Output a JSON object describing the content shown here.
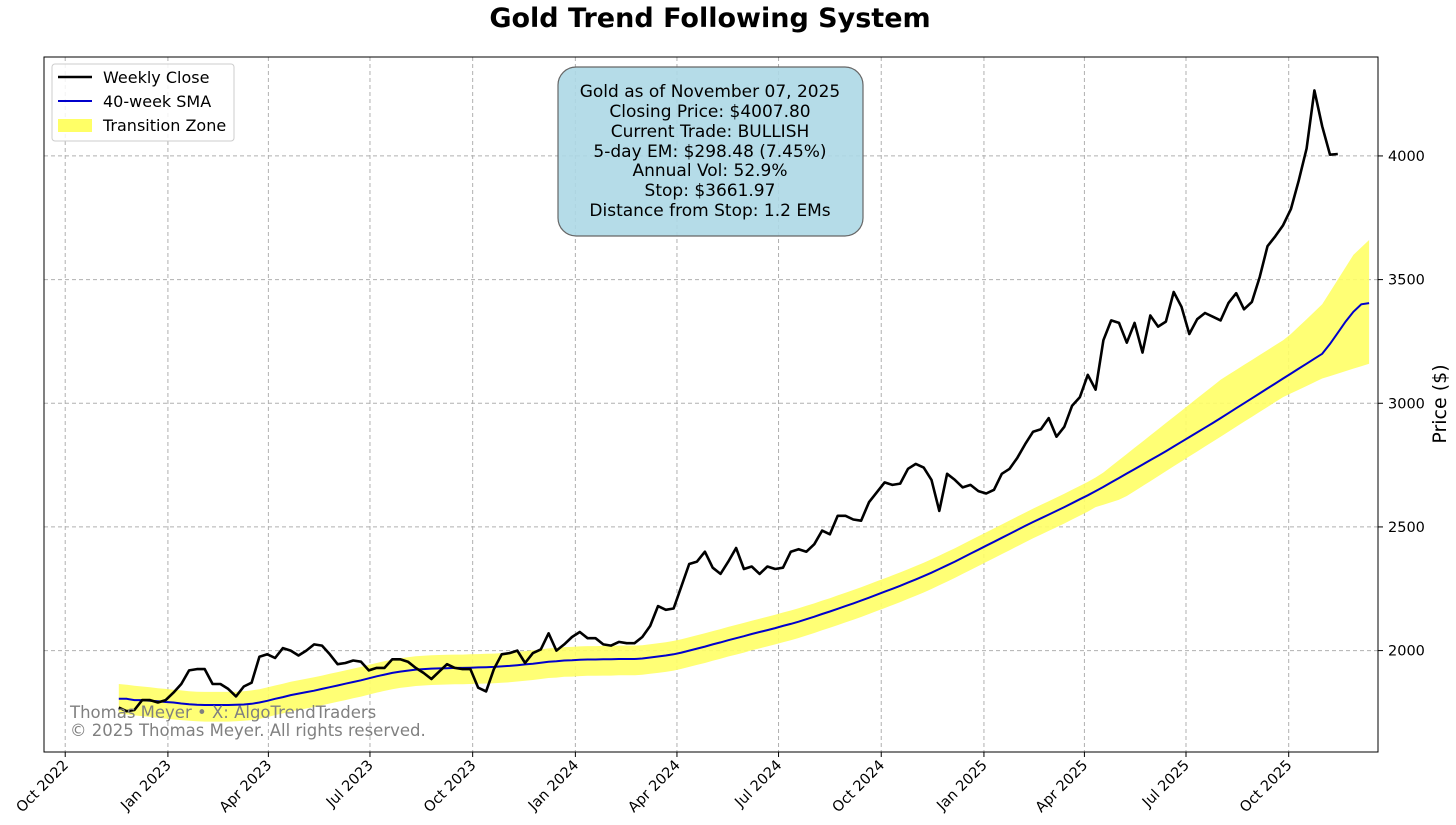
{
  "chart_data": {
    "type": "line",
    "title": "Gold Trend Following System",
    "xlabel": "",
    "ylabel": "Price ($)",
    "ylim": [
      1590,
      4400
    ],
    "yticks": [
      2000,
      2500,
      3000,
      3500,
      4000
    ],
    "ytick_labels": [
      "2000",
      "2500",
      "3000",
      "3500",
      "4000"
    ],
    "xlim": [
      "2022-09-12",
      "2025-12-20"
    ],
    "xticks": [
      "2022-10-01",
      "2023-01-01",
      "2023-04-01",
      "2023-07-01",
      "2023-10-01",
      "2024-01-01",
      "2024-04-01",
      "2024-07-01",
      "2024-10-01",
      "2025-01-01",
      "2025-04-01",
      "2025-07-01",
      "2025-10-01"
    ],
    "xtick_labels": [
      "Oct 2022",
      "Jan 2023",
      "Apr 2023",
      "Jul 2023",
      "Oct 2023",
      "Jan 2024",
      "Apr 2024",
      "Jul 2024",
      "Oct 2024",
      "Jan 2025",
      "Apr 2025",
      "Jul 2025",
      "Oct 2025"
    ],
    "grid": true,
    "legend_position": "top-left",
    "colors": {
      "close": "#000000",
      "sma": "#0000cc",
      "zone": "#ffff66",
      "info_box": "#add8e6"
    },
    "series": [
      {
        "name": "Weekly Close",
        "start_date": "2022-11-18",
        "interval_days": 7,
        "values": [
          1770,
          1755,
          1760,
          1800,
          1800,
          1790,
          1800,
          1830,
          1865,
          1920,
          1925,
          1925,
          1865,
          1865,
          1845,
          1815,
          1855,
          1870,
          1975,
          1985,
          1970,
          2010,
          2000,
          1980,
          2000,
          2025,
          2020,
          1985,
          1945,
          1950,
          1960,
          1955,
          1920,
          1930,
          1930,
          1965,
          1965,
          1955,
          1930,
          1910,
          1885,
          1915,
          1945,
          1930,
          1925,
          1925,
          1850,
          1835,
          1925,
          1985,
          1990,
          2000,
          1950,
          1990,
          2005,
          2070,
          2000,
          2025,
          2055,
          2075,
          2050,
          2050,
          2025,
          2020,
          2035,
          2030,
          2030,
          2055,
          2100,
          2180,
          2165,
          2170,
          2260,
          2350,
          2360,
          2400,
          2335,
          2310,
          2360,
          2415,
          2330,
          2340,
          2310,
          2340,
          2330,
          2335,
          2400,
          2410,
          2400,
          2430,
          2485,
          2470,
          2545,
          2545,
          2530,
          2525,
          2600,
          2640,
          2680,
          2670,
          2675,
          2735,
          2755,
          2740,
          2690,
          2565,
          2715,
          2690,
          2660,
          2670,
          2645,
          2635,
          2650,
          2715,
          2735,
          2780,
          2835,
          2885,
          2895,
          2940,
          2865,
          2905,
          2990,
          3025,
          3115,
          3055,
          3255,
          3335,
          3325,
          3245,
          3325,
          3205,
          3355,
          3310,
          3330,
          3450,
          3390,
          3280,
          3340,
          3365,
          3350,
          3335,
          3405,
          3445,
          3380,
          3410,
          3510,
          3635,
          3675,
          3720,
          3785,
          3900,
          4030,
          4265,
          4120,
          4005,
          4007.8
        ]
      },
      {
        "name": "40-week SMA",
        "start_date": "2022-11-18",
        "interval_days": 7,
        "values": [
          1805,
          1805,
          1800,
          1800,
          1797,
          1795,
          1792,
          1790,
          1786,
          1783,
          1781,
          1780,
          1780,
          1780,
          1780,
          1781,
          1782,
          1785,
          1790,
          1797,
          1805,
          1812,
          1820,
          1826,
          1832,
          1838,
          1845,
          1852,
          1859,
          1866,
          1873,
          1880,
          1888,
          1896,
          1903,
          1910,
          1915,
          1919,
          1923,
          1925,
          1927,
          1928,
          1929,
          1930,
          1930,
          1931,
          1932,
          1933,
          1934,
          1936,
          1938,
          1941,
          1944,
          1947,
          1951,
          1955,
          1957,
          1960,
          1961,
          1963,
          1964,
          1964,
          1965,
          1965,
          1966,
          1966,
          1966,
          1968,
          1972,
          1976,
          1980,
          1985,
          1992,
          2000,
          2008,
          2016,
          2025,
          2033,
          2042,
          2050,
          2058,
          2067,
          2075,
          2083,
          2091,
          2100,
          2108,
          2117,
          2127,
          2137,
          2148,
          2158,
          2169,
          2180,
          2191,
          2202,
          2214,
          2226,
          2238,
          2250,
          2262,
          2275,
          2288,
          2301,
          2315,
          2330,
          2345,
          2360,
          2376,
          2392,
          2408,
          2424,
          2440,
          2456,
          2472,
          2488,
          2504,
          2520,
          2535,
          2550,
          2565,
          2580,
          2596,
          2612,
          2628,
          2645,
          2662,
          2680,
          2698,
          2716,
          2734,
          2752,
          2770,
          2788,
          2806,
          2825,
          2844,
          2863,
          2882,
          2901,
          2920,
          2940,
          2960,
          2980,
          3000,
          3020,
          3040,
          3060,
          3080,
          3100,
          3120,
          3140,
          3160,
          3180,
          3200,
          3240,
          3285,
          3330,
          3370,
          3400,
          3405
        ]
      }
    ],
    "band": {
      "name": "Transition Zone",
      "start_date": "2022-11-18",
      "interval_days": 7,
      "upper": [
        1865,
        1862,
        1858,
        1855,
        1852,
        1848,
        1845,
        1842,
        1839,
        1836,
        1834,
        1833,
        1833,
        1833,
        1833,
        1834,
        1836,
        1839,
        1844,
        1851,
        1859,
        1866,
        1874,
        1880,
        1886,
        1892,
        1899,
        1906,
        1913,
        1920,
        1927,
        1934,
        1942,
        1950,
        1957,
        1964,
        1969,
        1973,
        1977,
        1979,
        1981,
        1982,
        1983,
        1984,
        1984,
        1985,
        1986,
        1987,
        1988,
        1990,
        1992,
        1995,
        1998,
        2001,
        2005,
        2009,
        2011,
        2014,
        2015,
        2017,
        2018,
        2018,
        2019,
        2019,
        2020,
        2020,
        2020,
        2022,
        2026,
        2030,
        2034,
        2039,
        2046,
        2054,
        2062,
        2070,
        2079,
        2087,
        2096,
        2104,
        2112,
        2121,
        2129,
        2137,
        2145,
        2154,
        2162,
        2171,
        2181,
        2191,
        2202,
        2212,
        2223,
        2234,
        2245,
        2256,
        2268,
        2280,
        2292,
        2304,
        2316,
        2329,
        2342,
        2355,
        2369,
        2384,
        2399,
        2414,
        2430,
        2446,
        2462,
        2478,
        2494,
        2510,
        2526,
        2542,
        2558,
        2574,
        2589,
        2604,
        2619,
        2634,
        2650,
        2666,
        2682,
        2700,
        2720,
        2745,
        2770,
        2795,
        2820,
        2845,
        2870,
        2895,
        2920,
        2945,
        2970,
        2995,
        3020,
        3045,
        3070,
        3095,
        3115,
        3135,
        3155,
        3175,
        3195,
        3215,
        3235,
        3255,
        3280,
        3310,
        3340,
        3370,
        3400,
        3450,
        3500,
        3550,
        3600,
        3630,
        3660
      ],
      "lower": [
        1745,
        1742,
        1738,
        1735,
        1732,
        1728,
        1725,
        1722,
        1719,
        1716,
        1714,
        1713,
        1713,
        1713,
        1713,
        1714,
        1716,
        1719,
        1724,
        1731,
        1739,
        1746,
        1754,
        1760,
        1766,
        1772,
        1779,
        1786,
        1793,
        1800,
        1807,
        1814,
        1822,
        1830,
        1837,
        1844,
        1849,
        1853,
        1857,
        1859,
        1861,
        1862,
        1863,
        1864,
        1864,
        1865,
        1866,
        1867,
        1868,
        1870,
        1872,
        1875,
        1878,
        1881,
        1885,
        1889,
        1891,
        1894,
        1895,
        1897,
        1898,
        1898,
        1899,
        1899,
        1900,
        1900,
        1900,
        1902,
        1906,
        1910,
        1914,
        1919,
        1926,
        1934,
        1942,
        1950,
        1959,
        1967,
        1976,
        1984,
        1992,
        2001,
        2009,
        2017,
        2025,
        2034,
        2042,
        2051,
        2061,
        2071,
        2082,
        2092,
        2103,
        2114,
        2125,
        2136,
        2148,
        2160,
        2172,
        2184,
        2196,
        2209,
        2222,
        2235,
        2249,
        2264,
        2279,
        2294,
        2310,
        2326,
        2342,
        2358,
        2374,
        2390,
        2406,
        2422,
        2438,
        2454,
        2469,
        2484,
        2499,
        2514,
        2530,
        2546,
        2562,
        2580,
        2590,
        2600,
        2610,
        2625,
        2645,
        2665,
        2685,
        2705,
        2725,
        2745,
        2765,
        2785,
        2805,
        2825,
        2845,
        2865,
        2885,
        2905,
        2925,
        2945,
        2965,
        2985,
        3005,
        3025,
        3040,
        3055,
        3070,
        3085,
        3100,
        3110,
        3120,
        3130,
        3140,
        3150,
        3160
      ]
    },
    "info_box": [
      "Gold as of November 07, 2025",
      "Closing Price: $4007.80",
      "Current Trade: BULLISH",
      "5-day EM: $298.48 (7.45%)",
      "Annual Vol: 52.9%",
      "Stop: $3661.97",
      "Distance from Stop: 1.2 EMs"
    ],
    "watermark": [
      "Thomas Meyer • X: AlgoTrendTraders",
      "© 2025 Thomas Meyer. All rights reserved."
    ]
  }
}
